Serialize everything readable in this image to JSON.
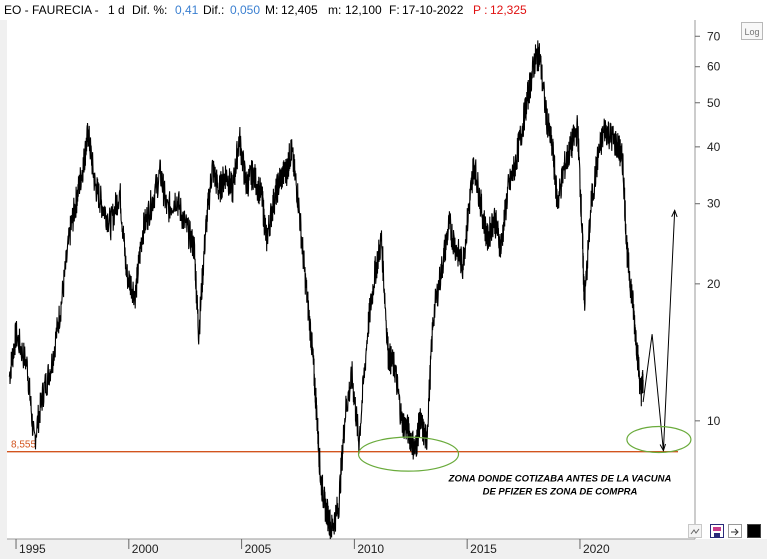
{
  "header": {
    "symbol": "EO - FAURECIA -",
    "period": "1 d",
    "dif_pct_label": "Dif. %:",
    "dif_pct_value": "0,41",
    "dif_label": "Dif.:",
    "dif_value": "0,050",
    "max_label": "M:",
    "max_value": "12,405",
    "min_label": "m:",
    "min_value": "12,100",
    "date_label": "F:",
    "date_value": "17-10-2022",
    "price_label": "P :",
    "price_value": "12,325"
  },
  "log_button": "Log",
  "colors": {
    "price_line": "#000000",
    "support_line": "#d2541e",
    "ellipse": "#6aab3c",
    "header_blue": "#3a7fd0",
    "header_red": "#e01010"
  },
  "chart_data": {
    "type": "line",
    "scale": "log",
    "ylim": [
      5.5,
      76
    ],
    "y_ticks": [
      10,
      20,
      30,
      40,
      50,
      60,
      70
    ],
    "x_ticks": [
      "1995",
      "2000",
      "2005",
      "2010",
      "2015",
      "2020"
    ],
    "xlim": [
      1994.6,
      2025.1
    ],
    "support_level": {
      "label": "8,555",
      "value": 8.555
    },
    "series": [
      {
        "values": [
          [
            1994.7,
            12.5
          ],
          [
            1995.0,
            15.5
          ],
          [
            1995.5,
            13.2
          ],
          [
            1995.8,
            9.0
          ],
          [
            1996.2,
            11.5
          ],
          [
            1996.6,
            13.5
          ],
          [
            1997.0,
            18.0
          ],
          [
            1997.4,
            26.0
          ],
          [
            1997.7,
            31.0
          ],
          [
            1998.0,
            37.0
          ],
          [
            1998.2,
            43.0
          ],
          [
            1998.5,
            33.0
          ],
          [
            1998.8,
            30.0
          ],
          [
            1999.2,
            27.0
          ],
          [
            1999.6,
            32.0
          ],
          [
            1999.9,
            21.0
          ],
          [
            2000.3,
            19.0
          ],
          [
            2000.6,
            26.0
          ],
          [
            2001.0,
            30.0
          ],
          [
            2001.4,
            35.0
          ],
          [
            2001.7,
            29.0
          ],
          [
            2002.1,
            31.0
          ],
          [
            2002.5,
            27.0
          ],
          [
            2002.9,
            24.0
          ],
          [
            2003.1,
            15.5
          ],
          [
            2003.4,
            26.0
          ],
          [
            2003.7,
            36.0
          ],
          [
            2004.0,
            32.0
          ],
          [
            2004.3,
            35.0
          ],
          [
            2004.6,
            32.0
          ],
          [
            2004.9,
            42.0
          ],
          [
            2005.2,
            33.0
          ],
          [
            2005.5,
            35.0
          ],
          [
            2005.9,
            31.0
          ],
          [
            2006.1,
            25.0
          ],
          [
            2006.4,
            30.0
          ],
          [
            2006.7,
            34.0
          ],
          [
            2007.0,
            35.5
          ],
          [
            2007.2,
            39.5
          ],
          [
            2007.5,
            31.0
          ],
          [
            2007.8,
            21.0
          ],
          [
            2008.1,
            15.0
          ],
          [
            2008.3,
            11.0
          ],
          [
            2008.5,
            7.5
          ],
          [
            2008.7,
            6.5
          ],
          [
            2009.0,
            5.8
          ],
          [
            2009.3,
            6.5
          ],
          [
            2009.6,
            10.5
          ],
          [
            2009.9,
            12.5
          ],
          [
            2010.2,
            9.0
          ],
          [
            2010.6,
            16.0
          ],
          [
            2010.9,
            21.0
          ],
          [
            2011.2,
            25.0
          ],
          [
            2011.5,
            14.0
          ],
          [
            2011.8,
            13.0
          ],
          [
            2012.1,
            10.0
          ],
          [
            2012.4,
            9.5
          ],
          [
            2012.7,
            8.6
          ],
          [
            2012.9,
            10.0
          ],
          [
            2013.2,
            9.0
          ],
          [
            2013.5,
            17.0
          ],
          [
            2013.9,
            22.0
          ],
          [
            2014.2,
            27.0
          ],
          [
            2014.5,
            24.0
          ],
          [
            2014.8,
            22.0
          ],
          [
            2015.1,
            30.0
          ],
          [
            2015.3,
            37.0
          ],
          [
            2015.6,
            30.0
          ],
          [
            2015.9,
            25.0
          ],
          [
            2016.2,
            28.0
          ],
          [
            2016.5,
            24.0
          ],
          [
            2016.8,
            32.0
          ],
          [
            2017.1,
            36.0
          ],
          [
            2017.4,
            43.0
          ],
          [
            2017.7,
            52.0
          ],
          [
            2018.0,
            62.0
          ],
          [
            2018.2,
            64.0
          ],
          [
            2018.5,
            47.0
          ],
          [
            2018.8,
            39.0
          ],
          [
            2019.0,
            30.0
          ],
          [
            2019.3,
            36.0
          ],
          [
            2019.6,
            40.0
          ],
          [
            2019.9,
            44.0
          ],
          [
            2020.1,
            26.0
          ],
          [
            2020.2,
            18.0
          ],
          [
            2020.5,
            30.0
          ],
          [
            2020.8,
            38.0
          ],
          [
            2021.1,
            44.0
          ],
          [
            2021.4,
            42.0
          ],
          [
            2021.7,
            40.0
          ],
          [
            2021.9,
            37.0
          ],
          [
            2022.1,
            23.0
          ],
          [
            2022.3,
            19.0
          ],
          [
            2022.5,
            15.0
          ],
          [
            2022.7,
            11.5
          ],
          [
            2022.8,
            12.3
          ]
        ]
      }
    ],
    "projection": [
      [
        2022.8,
        11.0
      ],
      [
        2023.2,
        15.5
      ],
      [
        2023.7,
        8.6
      ],
      [
        2024.2,
        29.0
      ]
    ],
    "ellipses": [
      {
        "x": 2012.4,
        "y": 8.45
      },
      {
        "x": 2023.5,
        "y": 9.1
      }
    ],
    "annotation": [
      "ZONA DONDE COTIZABA ANTES DE LA VACUNA",
      "DE PFIZER ES ZONA DE COMPRA"
    ]
  }
}
